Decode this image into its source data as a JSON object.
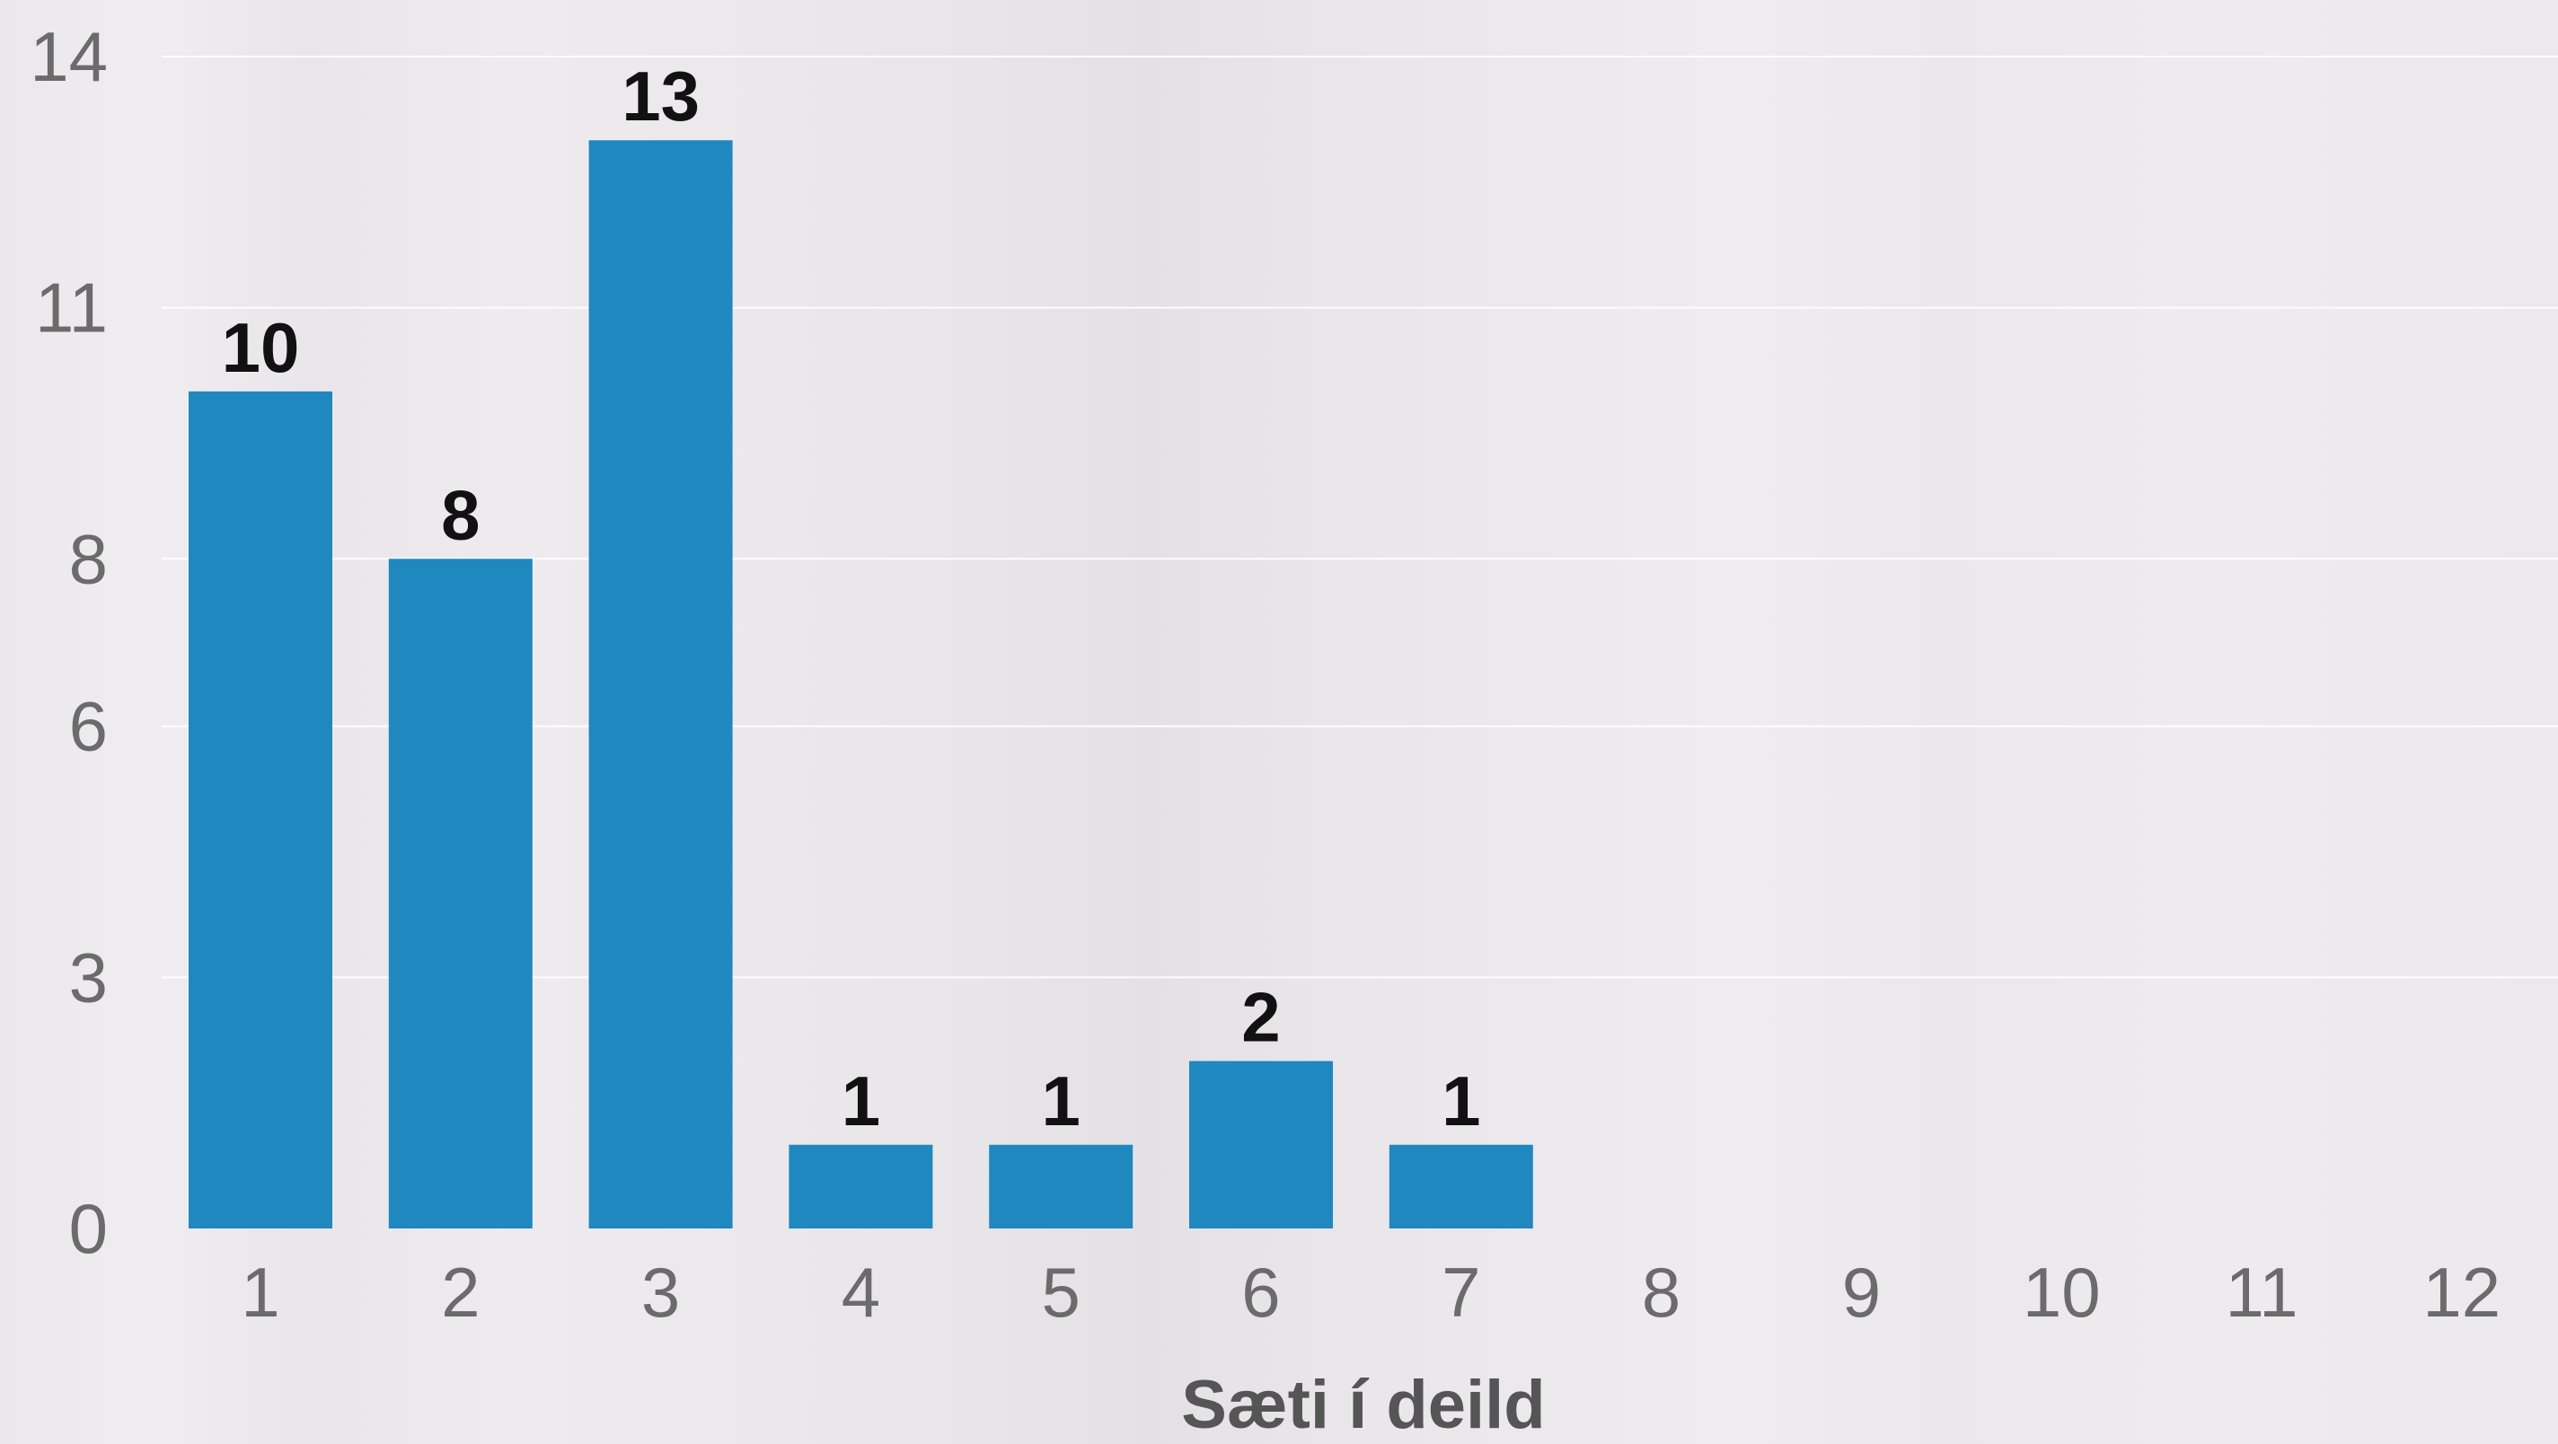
{
  "chart_data": {
    "type": "bar",
    "categories": [
      "1",
      "2",
      "3",
      "4",
      "5",
      "6",
      "7",
      "8",
      "9",
      "10",
      "11",
      "12"
    ],
    "values": [
      10,
      8,
      13,
      1,
      1,
      2,
      1,
      0,
      0,
      0,
      0,
      0
    ],
    "data_labels": [
      "10",
      "8",
      "13",
      "1",
      "1",
      "2",
      "1",
      "",
      "",
      "",
      "",
      ""
    ],
    "title": "",
    "xlabel": "Sæti í deild",
    "ylabel": "",
    "ylim": [
      0,
      14
    ],
    "yticks": [
      "0",
      "3",
      "6",
      "8",
      "11",
      "14"
    ],
    "grid": true,
    "bar_color": "#1f88bf"
  }
}
